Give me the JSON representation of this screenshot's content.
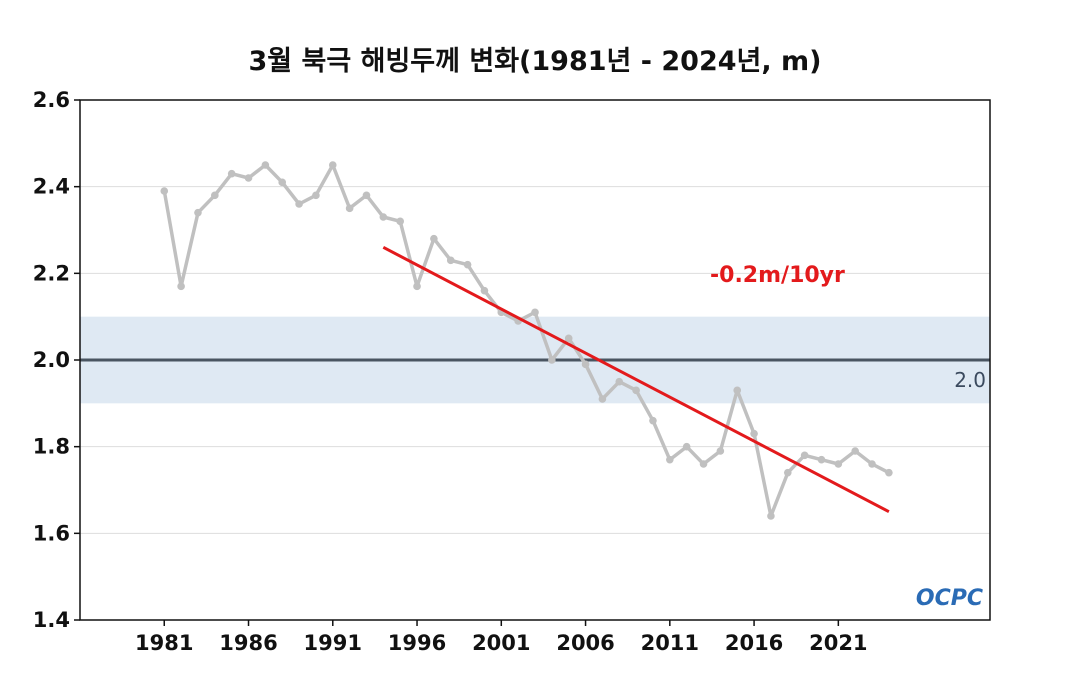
{
  "chart_data": {
    "type": "line",
    "title": "3월 북극 해빙두께 변화(1981년 - 2024년, m)",
    "xlabel": "",
    "ylabel": "",
    "xlim": [
      1976,
      2030
    ],
    "ylim": [
      1.4,
      2.6
    ],
    "x_ticks": [
      1981,
      1986,
      1991,
      1996,
      2001,
      2006,
      2011,
      2016,
      2021
    ],
    "y_ticks": [
      1.4,
      1.6,
      1.8,
      2.0,
      2.2,
      2.4,
      2.6
    ],
    "y_tick_labels": [
      "1.4",
      "1.6",
      "1.8",
      "2.0",
      "2.2",
      "2.4",
      "2.6"
    ],
    "grid": true,
    "series": [
      {
        "x": [
          1981,
          1982,
          1983,
          1984,
          1985,
          1986,
          1987,
          1988,
          1989,
          1990,
          1991,
          1992,
          1993,
          1994,
          1995,
          1996,
          1997,
          1998,
          1999,
          2000,
          2001,
          2002,
          2003,
          2004,
          2005,
          2006,
          2007,
          2008,
          2009,
          2010,
          2011,
          2012,
          2013,
          2014,
          2015,
          2016,
          2017,
          2018,
          2019,
          2020,
          2021,
          2022,
          2023,
          2024
        ],
        "values": [
          2.39,
          2.17,
          2.34,
          2.38,
          2.43,
          2.42,
          2.45,
          2.41,
          2.36,
          2.38,
          2.45,
          2.35,
          2.38,
          2.33,
          2.32,
          2.17,
          2.28,
          2.23,
          2.22,
          2.16,
          2.11,
          2.09,
          2.11,
          2.0,
          2.05,
          1.99,
          1.91,
          1.95,
          1.93,
          1.86,
          1.77,
          1.8,
          1.76,
          1.79,
          1.93,
          1.83,
          1.64,
          1.74,
          1.78,
          1.77,
          1.76,
          1.79,
          1.76,
          1.74
        ],
        "color": "#c0c0c0"
      }
    ],
    "trend": {
      "label": "-0.2m/10yr",
      "x": [
        1994,
        2024
      ],
      "values": [
        2.26,
        1.65
      ],
      "color": "#e31a1c"
    },
    "reference": {
      "value": 2.0,
      "label": "2.0",
      "band": [
        1.9,
        2.1
      ],
      "line_color": "#4a5561",
      "band_color": "#dfe9f3"
    },
    "logo_text": "OCPC"
  }
}
